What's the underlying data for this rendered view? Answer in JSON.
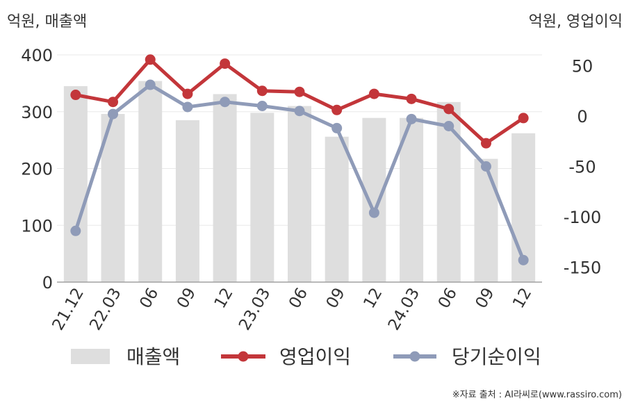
{
  "chart_data": {
    "type": "bar",
    "left_unit_label": "억원, 매출액",
    "right_unit_label": "억원, 영업이익",
    "categories": [
      "21.12",
      "22.03",
      "06",
      "09",
      "12",
      "23.03",
      "06",
      "09",
      "12",
      "24.03",
      "06",
      "09",
      "12"
    ],
    "left_axis": {
      "ticks": [
        "0",
        "100",
        "200",
        "300",
        "400"
      ],
      "range": [
        0,
        400
      ]
    },
    "right_axis": {
      "ticks": [
        "50",
        "0",
        "-50",
        "-100",
        "-150"
      ],
      "range": [
        -165,
        60
      ]
    },
    "series": [
      {
        "name": "매출액",
        "kind": "bar",
        "axis": "left",
        "color": "#dedede",
        "values": [
          345,
          296,
          354,
          285,
          331,
          298,
          310,
          256,
          289,
          289,
          317,
          217,
          262
        ]
      },
      {
        "name": "영업이익",
        "kind": "line",
        "axis": "right",
        "color": "#c3363a",
        "values": [
          21,
          14,
          56,
          22,
          52,
          25,
          24,
          6,
          22,
          17,
          7,
          -27,
          -2
        ]
      },
      {
        "name": "당기순이익",
        "kind": "line",
        "axis": "right",
        "color": "#8f9bb8",
        "values": [
          -114,
          2,
          31,
          9,
          14,
          10,
          5,
          -12,
          -96,
          -3,
          -10,
          -50,
          -143
        ]
      }
    ],
    "grid": true,
    "legend_position": "bottom"
  },
  "source_note": "※자료 출처 : AI라씨로(www.rassiro.com)"
}
